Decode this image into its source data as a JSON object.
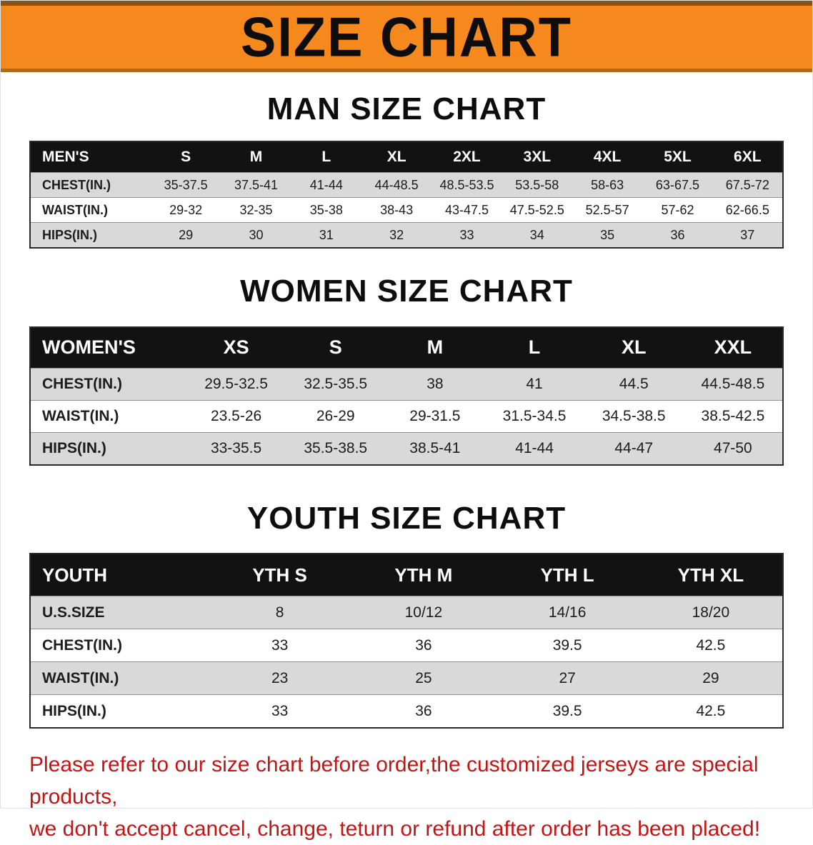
{
  "banner": {
    "title": "SIZE CHART"
  },
  "sections": [
    {
      "id": "men",
      "heading": "MAN SIZE CHART",
      "table": {
        "header_label": "MEN'S",
        "columns": [
          "S",
          "M",
          "L",
          "XL",
          "2XL",
          "3XL",
          "4XL",
          "5XL",
          "6XL"
        ],
        "rows": [
          {
            "label": "CHEST(IN.)",
            "values": [
              "35-37.5",
              "37.5-41",
              "41-44",
              "44-48.5",
              "48.5-53.5",
              "53.5-58",
              "58-63",
              "63-67.5",
              "67.5-72"
            ]
          },
          {
            "label": "WAIST(IN.)",
            "values": [
              "29-32",
              "32-35",
              "35-38",
              "38-43",
              "43-47.5",
              "47.5-52.5",
              "52.5-57",
              "57-62",
              "62-66.5"
            ]
          },
          {
            "label": "HIPS(IN.)",
            "values": [
              "29",
              "30",
              "31",
              "32",
              "33",
              "34",
              "35",
              "36",
              "37"
            ]
          }
        ]
      }
    },
    {
      "id": "women",
      "heading": "WOMEN SIZE CHART",
      "table": {
        "header_label": "WOMEN'S",
        "columns": [
          "XS",
          "S",
          "M",
          "L",
          "XL",
          "XXL"
        ],
        "rows": [
          {
            "label": "CHEST(IN.)",
            "values": [
              "29.5-32.5",
              "32.5-35.5",
              "38",
              "41",
              "44.5",
              "44.5-48.5"
            ]
          },
          {
            "label": "WAIST(IN.)",
            "values": [
              "23.5-26",
              "26-29",
              "29-31.5",
              "31.5-34.5",
              "34.5-38.5",
              "38.5-42.5"
            ]
          },
          {
            "label": "HIPS(IN.)",
            "values": [
              "33-35.5",
              "35.5-38.5",
              "38.5-41",
              "41-44",
              "44-47",
              "47-50"
            ]
          }
        ]
      }
    },
    {
      "id": "youth",
      "heading": "YOUTH SIZE CHART",
      "table": {
        "header_label": "YOUTH",
        "columns": [
          "YTH S",
          "YTH M",
          "YTH L",
          "YTH XL"
        ],
        "rows": [
          {
            "label": "U.S.SIZE",
            "values": [
              "8",
              "10/12",
              "14/16",
              "18/20"
            ]
          },
          {
            "label": "CHEST(IN.)",
            "values": [
              "33",
              "36",
              "39.5",
              "42.5"
            ]
          },
          {
            "label": "WAIST(IN.)",
            "values": [
              "23",
              "25",
              "27",
              "29"
            ]
          },
          {
            "label": "HIPS(IN.)",
            "values": [
              "33",
              "36",
              "39.5",
              "42.5"
            ]
          }
        ]
      }
    }
  ],
  "footer": {
    "line1": "Please refer to our size chart before order,the customized jerseys are special products,",
    "line2": "we don't accept cancel, change, teturn or refund after order has been placed!"
  },
  "colors": {
    "banner_orange": "#F6891E",
    "banner_border_dark": "#8A5415",
    "header_black": "#121212",
    "stripe_gray": "#D9D9D9",
    "notice_red": "#C41414"
  }
}
